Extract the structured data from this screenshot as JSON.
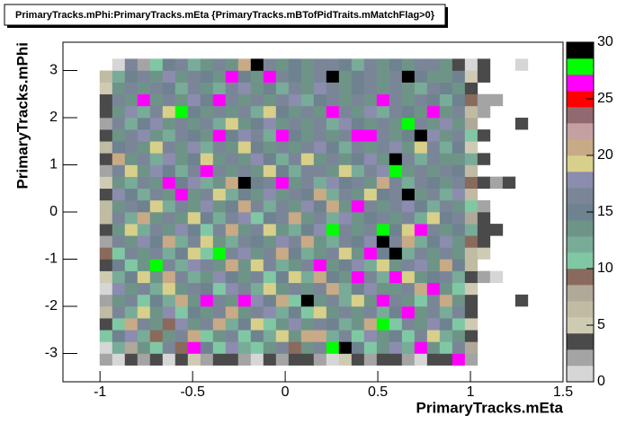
{
  "chart_data": {
    "type": "heatmap",
    "title": "PrimaryTracks.mPhi:PrimaryTracks.mEta {PrimaryTracks.mBTofPidTraits.mMatchFlag>0}",
    "x_label": "PrimaryTracks.mEta",
    "y_label": "PrimaryTracks.mPhi",
    "xlim": [
      -1.2,
      1.5
    ],
    "xticks": [
      -1,
      -0.5,
      0,
      0.5,
      1,
      1.5
    ],
    "ylim": [
      -3.6,
      3.6
    ],
    "yticks": [
      -3,
      -2,
      -1,
      0,
      1,
      2,
      3
    ],
    "zlim": [
      0,
      30
    ],
    "zticks": [
      0,
      5,
      10,
      15,
      20,
      25,
      30
    ],
    "palette": [
      "#d6d6d6",
      "#a4a4a4",
      "#4a4a4a",
      "#cfcbb2",
      "#c0bca4",
      "#b0a898",
      "#8a6a5c",
      "#80c8a4",
      "#78ac98",
      "#6e9488",
      "#6e8290",
      "#7a8698",
      "#8c8cae",
      "#d8d08a",
      "#c8aa86",
      "#c4a0a0",
      "#906a70",
      "#ff0000",
      "#ff00ff",
      "#00ff00",
      "#000000"
    ],
    "xbins": [
      -1.07,
      -1.002,
      -0.934,
      -0.866,
      -0.798,
      -0.73,
      -0.662,
      -0.594,
      -0.526,
      -0.458,
      -0.39,
      -0.322,
      -0.254,
      -0.186,
      -0.118,
      -0.05,
      0.018,
      0.086,
      0.154,
      0.222,
      0.29,
      0.358,
      0.426,
      0.494,
      0.562,
      0.63,
      0.698,
      0.766,
      0.834,
      0.902,
      0.97,
      1.038,
      1.106,
      1.174,
      1.242,
      1.31,
      1.378,
      1.446
    ],
    "ybins": [
      -3.25,
      -3,
      -2.75,
      -2.5,
      -2.25,
      -2,
      -1.75,
      -1.5,
      -1.25,
      -1,
      -0.75,
      -0.5,
      -0.25,
      0,
      0.25,
      0.5,
      0.75,
      1,
      1.25,
      1.5,
      1.75,
      2,
      2.25,
      2.5,
      2.75,
      3,
      3.25
    ],
    "z": [
      [
        0,
        2,
        1,
        3,
        2,
        4,
        1,
        3,
        5,
        2,
        3,
        4,
        2,
        1,
        3,
        2,
        4,
        3,
        2,
        1,
        5,
        3,
        2,
        4,
        3,
        2,
        1,
        3,
        4,
        26,
        2,
        0,
        0,
        0,
        0,
        0,
        0
      ],
      [
        0,
        1,
        12,
        8,
        14,
        10,
        16,
        9,
        26,
        15,
        11,
        18,
        12,
        10,
        14,
        17,
        9,
        13,
        16,
        28,
        29,
        15,
        10,
        14,
        18,
        12,
        26,
        13,
        11,
        16,
        8,
        0,
        0,
        0,
        0,
        0,
        0
      ],
      [
        0,
        10,
        15,
        18,
        12,
        9,
        14,
        16,
        20,
        11,
        13,
        17,
        10,
        15,
        12,
        19,
        14,
        20,
        21,
        12,
        16,
        11,
        18,
        13,
        15,
        10,
        17,
        19,
        12,
        14,
        3,
        0,
        0,
        0,
        0,
        0,
        0
      ],
      [
        0,
        4,
        11,
        20,
        17,
        13,
        9,
        18,
        14,
        16,
        21,
        12,
        15,
        19,
        11,
        14,
        18,
        13,
        17,
        15,
        12,
        14,
        20,
        28,
        11,
        16,
        13,
        18,
        15,
        10,
        5,
        0,
        0,
        0,
        0,
        0,
        0
      ],
      [
        0,
        6,
        16,
        12,
        19,
        14,
        18,
        11,
        15,
        13,
        17,
        20,
        14,
        16,
        18,
        12,
        15,
        11,
        19,
        14,
        17,
        13,
        16,
        12,
        15,
        27,
        14,
        17,
        12,
        16,
        4,
        0,
        0,
        0,
        0,
        0,
        0
      ],
      [
        0,
        2,
        13,
        17,
        11,
        15,
        12,
        20,
        14,
        26,
        16,
        13,
        27,
        18,
        15,
        20,
        11,
        29,
        14,
        16,
        12,
        19,
        13,
        26,
        17,
        14,
        11,
        16,
        20,
        13,
        3,
        0,
        0,
        0,
        3,
        0,
        0
      ],
      [
        0,
        1,
        18,
        14,
        16,
        12,
        19,
        13,
        17,
        15,
        11,
        18,
        16,
        12,
        19,
        14,
        17,
        13,
        16,
        20,
        12,
        15,
        18,
        14,
        13,
        17,
        20,
        26,
        14,
        11,
        5,
        0,
        0,
        0,
        0,
        0,
        0
      ],
      [
        0,
        5,
        12,
        15,
        19,
        13,
        20,
        16,
        12,
        14,
        18,
        15,
        13,
        17,
        11,
        15,
        19,
        12,
        20,
        15,
        13,
        26,
        17,
        12,
        26,
        19,
        13,
        15,
        17,
        12,
        4,
        2,
        1,
        0,
        0,
        0,
        0
      ],
      [
        0,
        3,
        15,
        11,
        14,
        28,
        17,
        12,
        18,
        16,
        13,
        20,
        14,
        19,
        16,
        12,
        14,
        17,
        27,
        13,
        15,
        18,
        12,
        19,
        14,
        16,
        18,
        13,
        20,
        15,
        6,
        0,
        0,
        0,
        0,
        0,
        0
      ],
      [
        0,
        9,
        11,
        16,
        13,
        17,
        12,
        15,
        19,
        11,
        28,
        16,
        18,
        13,
        17,
        20,
        15,
        12,
        14,
        16,
        19,
        13,
        26,
        15,
        29,
        12,
        17,
        14,
        16,
        13,
        7,
        5,
        0,
        0,
        0,
        0,
        0
      ],
      [
        0,
        2,
        17,
        13,
        18,
        15,
        20,
        12,
        16,
        19,
        14,
        12,
        17,
        15,
        13,
        18,
        16,
        20,
        14,
        12,
        17,
        15,
        18,
        29,
        16,
        20,
        12,
        15,
        18,
        14,
        9,
        3,
        0,
        0,
        0,
        0,
        0
      ],
      [
        0,
        3,
        14,
        19,
        12,
        16,
        13,
        18,
        15,
        11,
        17,
        20,
        13,
        16,
        19,
        14,
        12,
        15,
        18,
        28,
        16,
        13,
        17,
        28,
        15,
        19,
        26,
        16,
        13,
        15,
        12,
        3,
        3,
        0,
        0,
        0,
        0
      ],
      [
        0,
        6,
        16,
        12,
        20,
        14,
        17,
        13,
        19,
        15,
        12,
        16,
        18,
        11,
        15,
        17,
        20,
        13,
        16,
        12,
        18,
        14,
        15,
        17,
        13,
        16,
        12,
        19,
        15,
        17,
        8,
        4,
        0,
        0,
        0,
        0,
        0
      ],
      [
        0,
        7,
        13,
        17,
        15,
        19,
        12,
        16,
        14,
        18,
        13,
        15,
        20,
        17,
        12,
        16,
        14,
        18,
        15,
        20,
        13,
        26,
        17,
        14,
        16,
        18,
        15,
        12,
        17,
        14,
        10,
        2,
        0,
        0,
        0,
        0,
        0
      ],
      [
        0,
        4,
        18,
        15,
        12,
        17,
        14,
        26,
        13,
        16,
        19,
        12,
        15,
        14,
        18,
        13,
        17,
        15,
        20,
        12,
        16,
        14,
        19,
        15,
        17,
        29,
        13,
        16,
        12,
        18,
        6,
        0,
        0,
        0,
        0,
        0,
        0
      ],
      [
        0,
        5,
        14,
        12,
        17,
        13,
        26,
        15,
        18,
        12,
        14,
        20,
        29,
        15,
        17,
        26,
        13,
        16,
        12,
        18,
        15,
        17,
        14,
        20,
        16,
        12,
        17,
        15,
        13,
        16,
        9,
        3,
        2,
        3,
        0,
        0,
        0
      ],
      [
        0,
        2,
        16,
        19,
        13,
        18,
        15,
        12,
        16,
        26,
        17,
        14,
        16,
        13,
        19,
        15,
        12,
        17,
        16,
        14,
        19,
        12,
        16,
        18,
        28,
        14,
        17,
        13,
        16,
        15,
        7,
        0,
        0,
        0,
        0,
        0,
        0
      ],
      [
        0,
        3,
        20,
        14,
        16,
        12,
        18,
        13,
        15,
        19,
        14,
        17,
        13,
        18,
        15,
        12,
        16,
        19,
        14,
        17,
        13,
        15,
        18,
        14,
        30,
        16,
        12,
        17,
        14,
        13,
        12,
        3,
        0,
        0,
        0,
        0,
        0
      ],
      [
        0,
        6,
        15,
        17,
        13,
        19,
        16,
        14,
        18,
        12,
        16,
        13,
        19,
        15,
        14,
        17,
        13,
        16,
        18,
        15,
        12,
        17,
        14,
        16,
        18,
        13,
        19,
        16,
        12,
        15,
        5,
        0,
        0,
        0,
        0,
        0,
        0
      ],
      [
        0,
        3,
        13,
        16,
        18,
        14,
        12,
        17,
        15,
        13,
        26,
        15,
        18,
        16,
        12,
        26,
        15,
        13,
        17,
        14,
        16,
        26,
        26,
        17,
        13,
        15,
        29,
        18,
        14,
        16,
        10,
        3,
        0,
        0,
        0,
        0,
        0
      ],
      [
        0,
        2,
        17,
        12,
        15,
        18,
        14,
        16,
        13,
        17,
        12,
        19,
        14,
        15,
        18,
        13,
        17,
        14,
        16,
        12,
        18,
        15,
        13,
        16,
        14,
        28,
        17,
        13,
        18,
        14,
        8,
        0,
        0,
        0,
        3,
        0,
        0
      ],
      [
        0,
        4,
        14,
        18,
        12,
        16,
        19,
        28,
        15,
        14,
        17,
        13,
        16,
        12,
        19,
        15,
        14,
        17,
        13,
        26,
        16,
        14,
        18,
        12,
        17,
        15,
        13,
        26,
        14,
        16,
        6,
        2,
        0,
        0,
        0,
        0,
        0
      ],
      [
        0,
        3,
        16,
        13,
        26,
        14,
        17,
        13,
        18,
        15,
        26,
        16,
        13,
        17,
        14,
        16,
        18,
        12,
        15,
        17,
        13,
        16,
        14,
        26,
        16,
        14,
        17,
        15,
        12,
        15,
        9,
        2,
        2,
        0,
        0,
        0,
        0
      ],
      [
        0,
        5,
        14,
        17,
        13,
        16,
        15,
        12,
        17,
        14,
        12,
        16,
        18,
        14,
        15,
        12,
        16,
        13,
        18,
        16,
        14,
        15,
        17,
        13,
        16,
        14,
        12,
        17,
        15,
        14,
        4,
        0,
        0,
        0,
        0,
        0,
        0
      ],
      [
        0,
        6,
        12,
        15,
        16,
        13,
        18,
        14,
        16,
        15,
        13,
        26,
        15,
        14,
        26,
        17,
        15,
        14,
        16,
        30,
        13,
        15,
        16,
        14,
        17,
        30,
        15,
        14,
        13,
        15,
        5,
        3,
        0,
        0,
        0,
        0,
        0
      ],
      [
        0,
        0,
        1,
        16,
        2,
        10,
        15,
        16,
        12,
        14,
        17,
        13,
        20,
        29,
        16,
        14,
        15,
        13,
        16,
        17,
        15,
        12,
        16,
        14,
        15,
        13,
        17,
        16,
        14,
        3,
        1,
        3,
        0,
        0,
        1,
        0,
        0
      ]
    ]
  }
}
